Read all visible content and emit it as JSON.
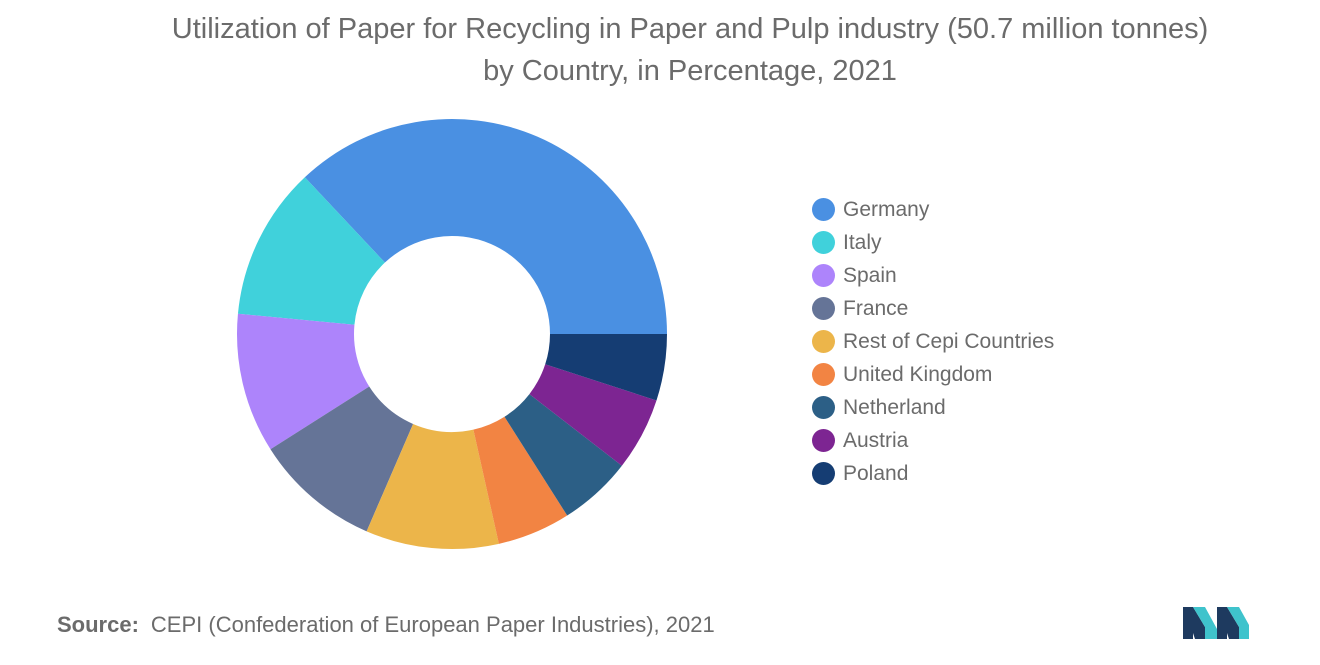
{
  "chart_data": {
    "type": "pie",
    "title": "Utilization of Paper for Recycling in Paper and Pulp industry (50.7 million tonnes) by Country, in Percentage, 2021",
    "series": [
      {
        "name": "Germany",
        "value": 37.0,
        "color": "#4a90e2"
      },
      {
        "name": "Italy",
        "value": 11.5,
        "color": "#40d1db"
      },
      {
        "name": "Spain",
        "value": 10.5,
        "color": "#ad84fb"
      },
      {
        "name": "France",
        "value": 9.5,
        "color": "#657497"
      },
      {
        "name": "Rest of Cepi Countries",
        "value": 10.0,
        "color": "#ecb54a"
      },
      {
        "name": "United Kingdom",
        "value": 5.5,
        "color": "#f28443"
      },
      {
        "name": "Netherland",
        "value": 5.5,
        "color": "#2c5f86"
      },
      {
        "name": "Austria",
        "value": 5.5,
        "color": "#7d2592"
      },
      {
        "name": "Poland",
        "value": 5.0,
        "color": "#153d73"
      }
    ],
    "legend_position": "right",
    "donut": true
  },
  "source": {
    "label": "Source:",
    "text": "CEPI (Confederation of European Paper Industries), 2021"
  },
  "logo": {
    "icon": "mordor-intelligence-logo",
    "colors": [
      "#1e3a5f",
      "#3fc3cc"
    ]
  }
}
